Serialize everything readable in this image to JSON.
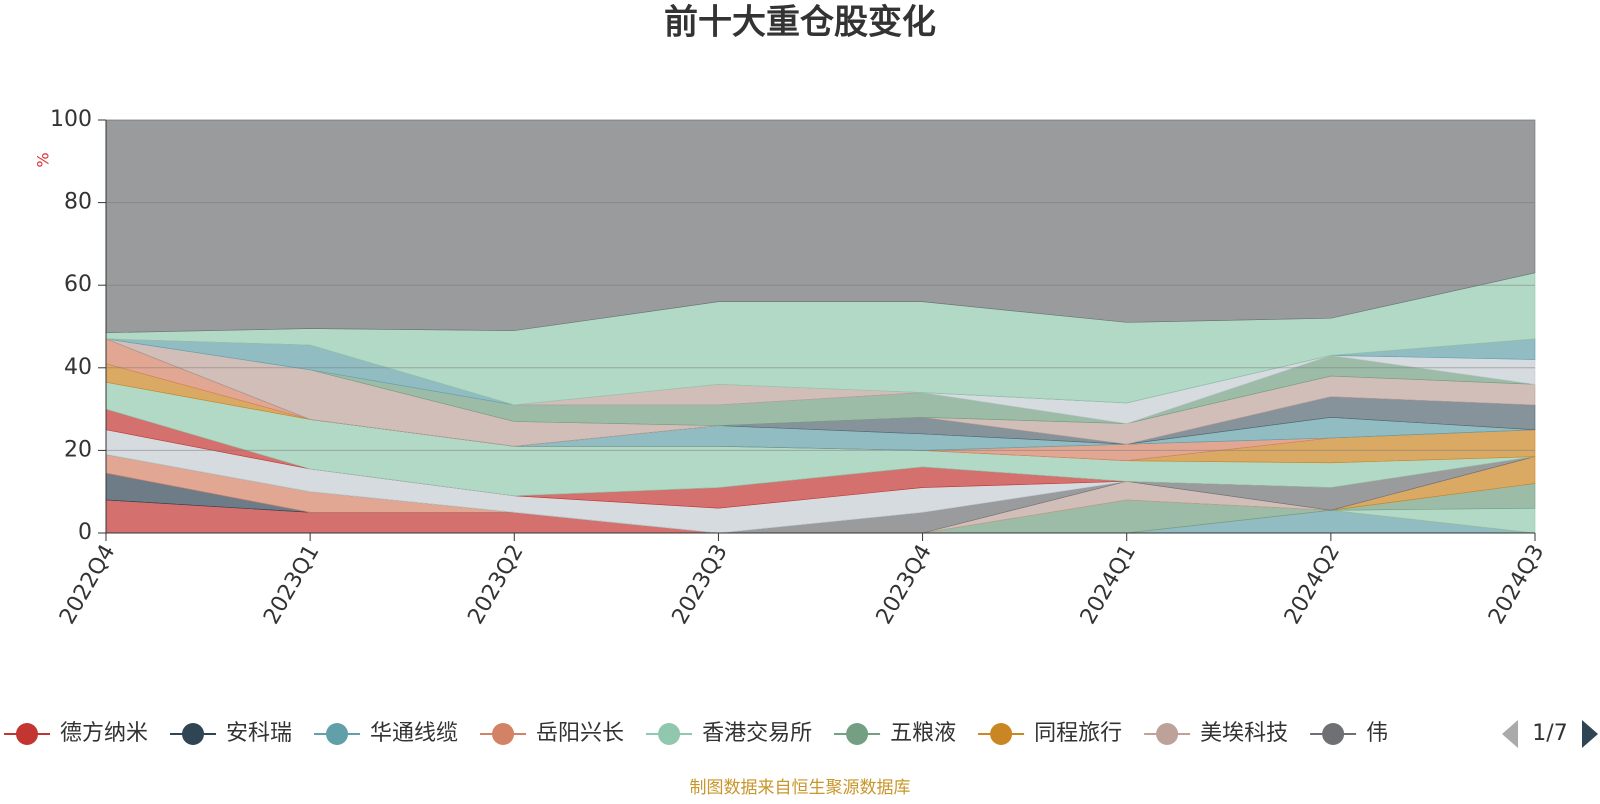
{
  "chart_data": {
    "type": "stacked_area",
    "title": "前十大重仓股变化",
    "y_label": "%",
    "categories": [
      "2022Q4",
      "2023Q1",
      "2023Q2",
      "2023Q3",
      "2023Q4",
      "2024Q1",
      "2024Q2",
      "2024Q3"
    ],
    "ylim": [
      0,
      100
    ],
    "yticks": [
      0,
      20,
      40,
      60,
      80,
      100
    ],
    "grid": true,
    "series": [
      {
        "name": "德方纳米",
        "color": "#c23531",
        "values": [
          8,
          5,
          5,
          0,
          0,
          0,
          0,
          0
        ]
      },
      {
        "name": "安科瑞",
        "color": "#2f4554",
        "values": [
          6.5,
          0,
          0,
          0,
          0,
          0,
          0,
          0
        ]
      },
      {
        "name": "华通线缆",
        "color": "#61a0a8",
        "values": [
          0,
          0,
          0,
          0,
          0,
          0,
          5.5,
          0
        ]
      },
      {
        "name": "岳阳兴长",
        "color": "#d48265",
        "values": [
          4.5,
          5,
          0,
          0,
          0,
          0,
          0,
          0
        ]
      },
      {
        "name": "香港交易所",
        "color": "#91c7ae",
        "values": [
          0,
          0,
          0,
          0,
          0,
          0,
          0,
          6
        ]
      },
      {
        "name": "五粮液",
        "color": "#749f83",
        "values": [
          0,
          0,
          0,
          0,
          0,
          8,
          0,
          6
        ]
      },
      {
        "name": "同程旅行",
        "color": "#ca8622",
        "values": [
          0,
          0,
          0,
          0,
          0,
          0,
          0,
          6.5
        ]
      },
      {
        "name": "美埃科技",
        "color": "#bda29a",
        "values": [
          0,
          0,
          0,
          0,
          0,
          4.5,
          0,
          0
        ]
      },
      {
        "name": "伟",
        "color": "#6e7074",
        "values": [
          0,
          0,
          0,
          0,
          5,
          0,
          5.5,
          0
        ]
      },
      {
        "color": "#c4ccd3",
        "values": [
          6,
          5.5,
          4,
          6,
          6,
          0,
          0,
          0
        ]
      },
      {
        "color": "#c23531",
        "values": [
          5,
          0,
          0,
          5,
          5,
          0,
          0,
          0
        ]
      },
      {
        "color": "#91c7ae",
        "values": [
          6.5,
          12,
          12,
          10,
          4,
          5,
          6,
          0
        ]
      },
      {
        "color": "#ca8622",
        "values": [
          4.5,
          0,
          0,
          0,
          0,
          0,
          6,
          6.5
        ]
      },
      {
        "color": "#d48265",
        "values": [
          6,
          0,
          0,
          0,
          0,
          4,
          0,
          0
        ]
      },
      {
        "color": "#61a0a8",
        "values": [
          0,
          0,
          0,
          5,
          4,
          0,
          5,
          0
        ]
      },
      {
        "color": "#546570",
        "values": [
          0,
          0,
          0,
          0,
          4,
          0,
          5,
          6
        ]
      },
      {
        "color": "#bda29a",
        "values": [
          0,
          12,
          6,
          0,
          0,
          5,
          5,
          5
        ]
      },
      {
        "color": "#749f83",
        "values": [
          0,
          0,
          4,
          5,
          6,
          0,
          5,
          0
        ]
      },
      {
        "color": "#c4ccd3",
        "values": [
          0,
          0,
          0,
          0,
          0,
          5,
          0,
          6
        ]
      },
      {
        "color": "#61a0a8",
        "values": [
          0,
          6,
          0,
          0,
          0,
          0,
          0,
          5
        ]
      },
      {
        "color": "#bda29a",
        "values": [
          0,
          0,
          0,
          5,
          0,
          0,
          0,
          0
        ]
      },
      {
        "color": "#91c7ae",
        "values": [
          1.5,
          4,
          18,
          20,
          22,
          19.5,
          9,
          16
        ]
      },
      {
        "color": "#6e7074",
        "values": [
          51.5,
          50.5,
          51,
          44,
          44,
          49,
          48,
          37
        ]
      }
    ],
    "legend_page": "1/7",
    "footer": "制图数据来自恒生聚源数据库"
  }
}
